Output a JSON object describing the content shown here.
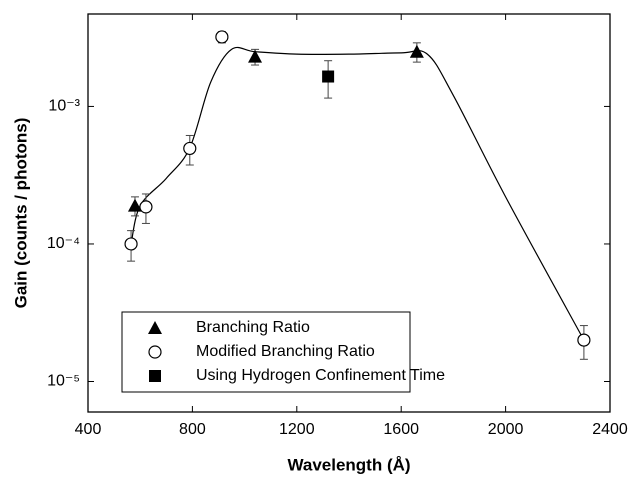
{
  "chart_data": {
    "type": "scatter",
    "x_label": "Wavelength (Å)",
    "y_label": "Gain (counts / photons)",
    "xlim": [
      400,
      2400
    ],
    "xticks": [
      400,
      800,
      1200,
      1600,
      2000,
      2400
    ],
    "ylim": [
      6e-06,
      0.0047
    ],
    "log_y": true,
    "yticks": [
      {
        "value": 1e-05,
        "label": "10⁻⁵"
      },
      {
        "value": 0.0001,
        "label": "10⁻⁴"
      },
      {
        "value": 0.001,
        "label": "10⁻³"
      }
    ],
    "legend": "bottom-left",
    "series": [
      {
        "name": "Branching Ratio",
        "marker": "triangle",
        "color": "#000000",
        "x": [
          580,
          1040,
          1660
        ],
        "values": [
          0.00019,
          0.0023,
          0.0025
        ],
        "errors": [
          3e-05,
          0.0003,
          0.0004
        ]
      },
      {
        "name": "Modified Branching Ratio",
        "marker": "circle",
        "color": "#000000",
        "x": [
          565,
          622,
          790,
          913,
          2300
        ],
        "values": [
          0.0001,
          0.000186,
          0.000495,
          0.0032,
          2e-05
        ],
        "errors": [
          2.5e-05,
          4.5e-05,
          0.00012,
          0.0003,
          5.5e-06
        ]
      },
      {
        "name": "Using Hydrogen Confinement Time",
        "marker": "square",
        "color": "#000000",
        "x": [
          1320
        ],
        "values": [
          0.00165
        ],
        "errors": [
          0.0005
        ]
      }
    ],
    "curve": {
      "color": "#000000",
      "x": [
        565,
        600,
        700,
        790,
        870,
        950,
        1040,
        1200,
        1400,
        1600,
        1700,
        1800,
        2000,
        2300
      ],
      "values": [
        0.0001,
        0.00019,
        0.0003,
        0.0005,
        0.0015,
        0.0026,
        0.0025,
        0.0024,
        0.0024,
        0.00245,
        0.0024,
        0.0012,
        0.00022,
        2e-05
      ]
    }
  }
}
